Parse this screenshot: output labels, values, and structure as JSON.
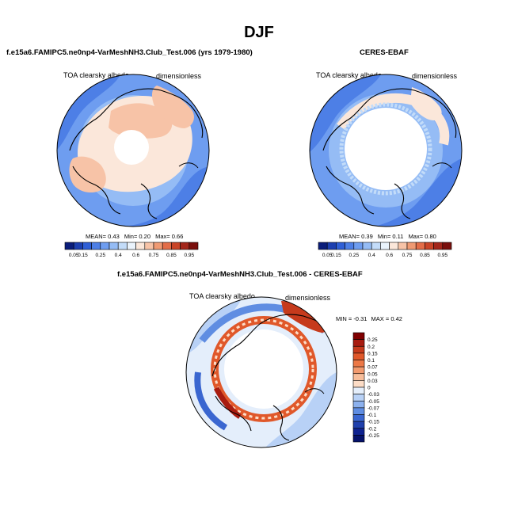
{
  "figure": {
    "season": "DJF"
  },
  "panels": [
    {
      "id": "model",
      "title": "f.e15a6.FAMIPC5.ne0np4-VarMeshNH3.Club_Test.006 (yrs 1979-1980)",
      "variable": "TOA clearsky albedo",
      "units": "dimensionless",
      "mean_label": "MEAN=",
      "mean": "0.43",
      "min_label": "Min=",
      "min": "0.20",
      "max_label": "Max=",
      "max": "0.66"
    },
    {
      "id": "obs",
      "title": "CERES-EBAF",
      "variable": "TOA clearsky albedo",
      "units": "dimensionless",
      "mean_label": "MEAN=",
      "mean": "0.39",
      "min_label": "Min=",
      "min": "0.11",
      "max_label": "Max=",
      "max": "0.80"
    },
    {
      "id": "diff",
      "title": "f.e15a6.FAMIPC5.ne0np4-VarMeshNH3.Club_Test.006 - CERES-EBAF",
      "variable": "TOA clearsky albedo",
      "units": "dimensionless",
      "min_label": "MIN =",
      "min": "-0.31",
      "max_label": "MAX =",
      "max": "0.42"
    }
  ],
  "chart_data": [
    {
      "type": "heatmap",
      "projection": "north-polar-stereographic",
      "title": "f.e15a6.FAMIPC5.ne0np4-VarMeshNH3.Club_Test.006 (yrs 1979-1980)",
      "colorbar": {
        "orientation": "horizontal",
        "levels": [
          "0.05",
          "0.15",
          "0.2",
          "0.25",
          "0.3",
          "0.4",
          "0.5",
          "0.6",
          "0.7",
          "0.75",
          "0.8",
          "0.85",
          "0.9",
          "0.95"
        ],
        "tick_labels": [
          "0.05",
          "0.15",
          "0.25",
          "0.4",
          "0.6",
          "0.75",
          "0.85",
          "0.95"
        ],
        "colors": [
          "#0a1d7a",
          "#1c3fb0",
          "#2f5fd6",
          "#4d7fe6",
          "#6e9df0",
          "#95bcf5",
          "#c3dcf9",
          "#eaf3fc",
          "#fbe7da",
          "#f7c3a7",
          "#f09a73",
          "#e36d48",
          "#c94427",
          "#a3261a",
          "#7a0f0c"
        ]
      },
      "stats": {
        "mean": 0.43,
        "min": 0.2,
        "max": 0.66
      }
    },
    {
      "type": "heatmap",
      "projection": "north-polar-stereographic",
      "title": "CERES-EBAF",
      "colorbar": {
        "orientation": "horizontal",
        "levels": [
          "0.05",
          "0.15",
          "0.2",
          "0.25",
          "0.3",
          "0.4",
          "0.5",
          "0.6",
          "0.7",
          "0.75",
          "0.8",
          "0.85",
          "0.9",
          "0.95"
        ],
        "tick_labels": [
          "0.05",
          "0.15",
          "0.25",
          "0.4",
          "0.6",
          "0.75",
          "0.85",
          "0.95"
        ],
        "colors": [
          "#0a1d7a",
          "#1c3fb0",
          "#2f5fd6",
          "#4d7fe6",
          "#6e9df0",
          "#95bcf5",
          "#c3dcf9",
          "#eaf3fc",
          "#fbe7da",
          "#f7c3a7",
          "#f09a73",
          "#e36d48",
          "#c94427",
          "#a3261a",
          "#7a0f0c"
        ]
      },
      "stats": {
        "mean": 0.39,
        "min": 0.11,
        "max": 0.8
      }
    },
    {
      "type": "heatmap",
      "projection": "north-polar-stereographic",
      "title": "f.e15a6.FAMIPC5.ne0np4-VarMeshNH3.Club_Test.006 - CERES-EBAF",
      "colorbar": {
        "orientation": "vertical",
        "levels": [
          "0.25",
          "0.2",
          "0.15",
          "0.1",
          "0.07",
          "0.05",
          "0.03",
          "0",
          "-0.03",
          "-0.05",
          "-0.07",
          "-0.1",
          "-0.15",
          "-0.2",
          "-0.25"
        ],
        "colors": [
          "#800000",
          "#a81c10",
          "#c63a1c",
          "#e0582a",
          "#ec7846",
          "#f29a6e",
          "#f7bd9a",
          "#fcdcc6",
          "#e4eefb",
          "#b8d1f6",
          "#8cb1ee",
          "#5f8de2",
          "#3a66d0",
          "#1f40ad",
          "#0e2290",
          "#05126b"
        ]
      },
      "stats": {
        "min": -0.31,
        "max": 0.42
      }
    }
  ]
}
